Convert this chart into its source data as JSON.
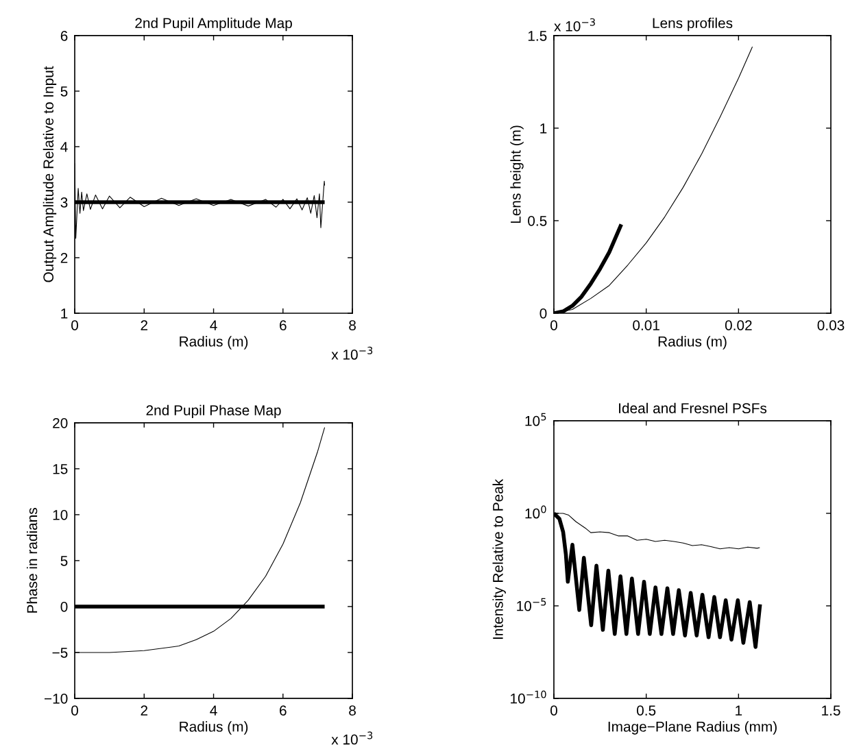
{
  "chart_data": [
    {
      "type": "line",
      "title": "2nd Pupil Amplitude Map",
      "xlabel": "Radius (m)",
      "ylabel": "Output Amplitude Relative to Input",
      "annotations": [
        "x 10$^{−3}$"
      ],
      "xlim": [
        0,
        8
      ],
      "xticks": [
        0,
        2,
        4,
        6,
        8
      ],
      "ylim": [
        1,
        6
      ],
      "yticks": [
        1,
        2,
        3,
        4,
        5,
        6
      ],
      "series": [
        {
          "color": "#000000",
          "x": [
            0,
            7.2
          ],
          "values": [
            3,
            3
          ]
        },
        {
          "color": "#000000",
          "x": [
            0,
            0.03,
            0.1,
            0.15,
            0.2,
            0.25,
            0.35,
            0.45,
            0.6,
            0.8,
            1,
            1.3,
            1.6,
            2,
            2.5,
            3,
            3.5,
            4,
            4.5,
            5,
            5.5,
            5.8,
            6,
            6.2,
            6.4,
            6.55,
            6.7,
            6.8,
            6.9,
            6.98,
            7.05,
            7.09,
            7.19,
            7.2
          ],
          "values": [
            3.7,
            2.35,
            3.25,
            2.8,
            3.18,
            2.85,
            3.15,
            2.87,
            3.13,
            2.88,
            3.11,
            2.9,
            3.09,
            2.92,
            3.07,
            2.94,
            3.06,
            2.94,
            3.05,
            2.93,
            3.05,
            2.91,
            3.05,
            2.88,
            3.06,
            2.86,
            3.08,
            2.8,
            3.12,
            2.72,
            3.15,
            2.54,
            3.38,
            3.3
          ]
        }
      ]
    },
    {
      "type": "line",
      "title": "Lens profiles",
      "xlabel": "Radius (m)",
      "ylabel": "Lens height (m)",
      "annotations": [
        "x 10$^{−3}$"
      ],
      "xlim": [
        0,
        0.03
      ],
      "xticks": [
        0,
        0.01,
        0.02,
        0.03
      ],
      "ylim": [
        0,
        1.5
      ],
      "yticks": [
        0,
        0.5,
        1,
        1.5
      ],
      "series": [
        {
          "color": "#000000",
          "x": [
            0,
            0.001,
            0.002,
            0.003,
            0.004,
            0.005,
            0.006,
            0.0073
          ],
          "values": [
            0,
            0.01,
            0.04,
            0.09,
            0.16,
            0.24,
            0.33,
            0.48
          ]
        },
        {
          "color": "#000000",
          "x": [
            0,
            0.002,
            0.004,
            0.006,
            0.008,
            0.01,
            0.012,
            0.014,
            0.016,
            0.018,
            0.02,
            0.0215
          ],
          "values": [
            0,
            0.02,
            0.08,
            0.15,
            0.26,
            0.38,
            0.52,
            0.68,
            0.86,
            1.06,
            1.27,
            1.44
          ]
        }
      ]
    },
    {
      "type": "line",
      "title": "2nd Pupil Phase Map",
      "xlabel": "Radius (m)",
      "ylabel": "Phase in radians",
      "annotations": [
        "x 10$^{−3}$"
      ],
      "xlim": [
        0,
        8
      ],
      "xticks": [
        0,
        2,
        4,
        6,
        8
      ],
      "ylim": [
        -10,
        20
      ],
      "yticks": [
        {
          "value": -10,
          "label": "−10"
        },
        {
          "value": -5,
          "label": "−5"
        },
        0,
        5,
        10,
        15,
        20
      ],
      "series": [
        {
          "color": "#000000",
          "x": [
            0,
            7.2
          ],
          "values": [
            0,
            0
          ]
        },
        {
          "color": "#000000",
          "x": [
            0,
            1,
            2,
            3,
            3.5,
            4,
            4.5,
            5,
            5.5,
            6,
            6.5,
            7,
            7.2
          ],
          "values": [
            -5,
            -5,
            -4.8,
            -4.3,
            -3.6,
            -2.7,
            -1.3,
            0.7,
            3.3,
            6.8,
            11.3,
            16.9,
            19.5
          ]
        }
      ]
    },
    {
      "type": "line",
      "title": "Ideal and Fresnel PSFs",
      "xlabel": "Image−Plane Radius (mm)",
      "ylabel": "Intensity Relative to Peak",
      "log": "y",
      "xlim": [
        0,
        1.5
      ],
      "xticks": [
        0,
        0.5,
        1,
        1.5
      ],
      "ylim": [
        1e-10,
        100000
      ],
      "yticks": [
        {
          "value": 1e-10,
          "label": "10$^{−10}$"
        },
        {
          "value": 1e-05,
          "label": "10$^{−5}$"
        },
        {
          "value": 1,
          "label": "10$^{0}$"
        },
        {
          "value": 100000,
          "label": "10$^{5}$"
        }
      ],
      "series": [
        {
          "color": "#000000",
          "x": [
            0,
            0.03,
            0.05,
            0.065,
            0.0755,
            0.1004,
            0.1375,
            0.1624,
            0.2019,
            0.2305,
            0.2652,
            0.2949,
            0.3296,
            0.3606,
            0.3928,
            0.4226,
            0.456,
            0.4882,
            0.5193,
            0.5502,
            0.5825,
            0.6146,
            0.6457,
            0.6766,
            0.71,
            0.741,
            0.7732,
            0.8042,
            0.8377,
            0.8687,
            0.8996,
            0.9306,
            0.9616,
            0.9963,
            1.026,
            1.0606,
            1.092,
            1.1165
          ],
          "values": [
            1,
            0.5,
            0.1,
            0.006,
            0.0002,
            0.02,
            6e-06,
            0.004,
            9e-07,
            0.0015,
            5e-07,
            0.0008,
            3e-07,
            0.0004,
            3e-07,
            0.0003,
            3e-07,
            0.0002,
            3e-07,
            0.0001,
            3e-07,
            9e-05,
            3e-07,
            7e-05,
            2.5e-07,
            5e-05,
            2.5e-07,
            4e-05,
            2e-07,
            3e-05,
            2e-07,
            2e-05,
            1.5e-07,
            2e-05,
            1e-07,
            1.6e-05,
            6e-08,
            1.2e-05
          ]
        },
        {
          "color": "#000000",
          "x": [
            0,
            0.05,
            0.08,
            0.12,
            0.17,
            0.2,
            0.25,
            0.3,
            0.35,
            0.4,
            0.45,
            0.5,
            0.55,
            0.6,
            0.65,
            0.7,
            0.75,
            0.8,
            0.85,
            0.9,
            0.95,
            1.0,
            1.05,
            1.1,
            1.115
          ],
          "values": [
            1,
            1,
            0.8,
            0.35,
            0.16,
            0.09,
            0.1,
            0.09,
            0.06,
            0.06,
            0.035,
            0.04,
            0.03,
            0.035,
            0.03,
            0.025,
            0.018,
            0.02,
            0.016,
            0.012,
            0.014,
            0.012,
            0.015,
            0.013,
            0.014
          ]
        }
      ]
    }
  ]
}
